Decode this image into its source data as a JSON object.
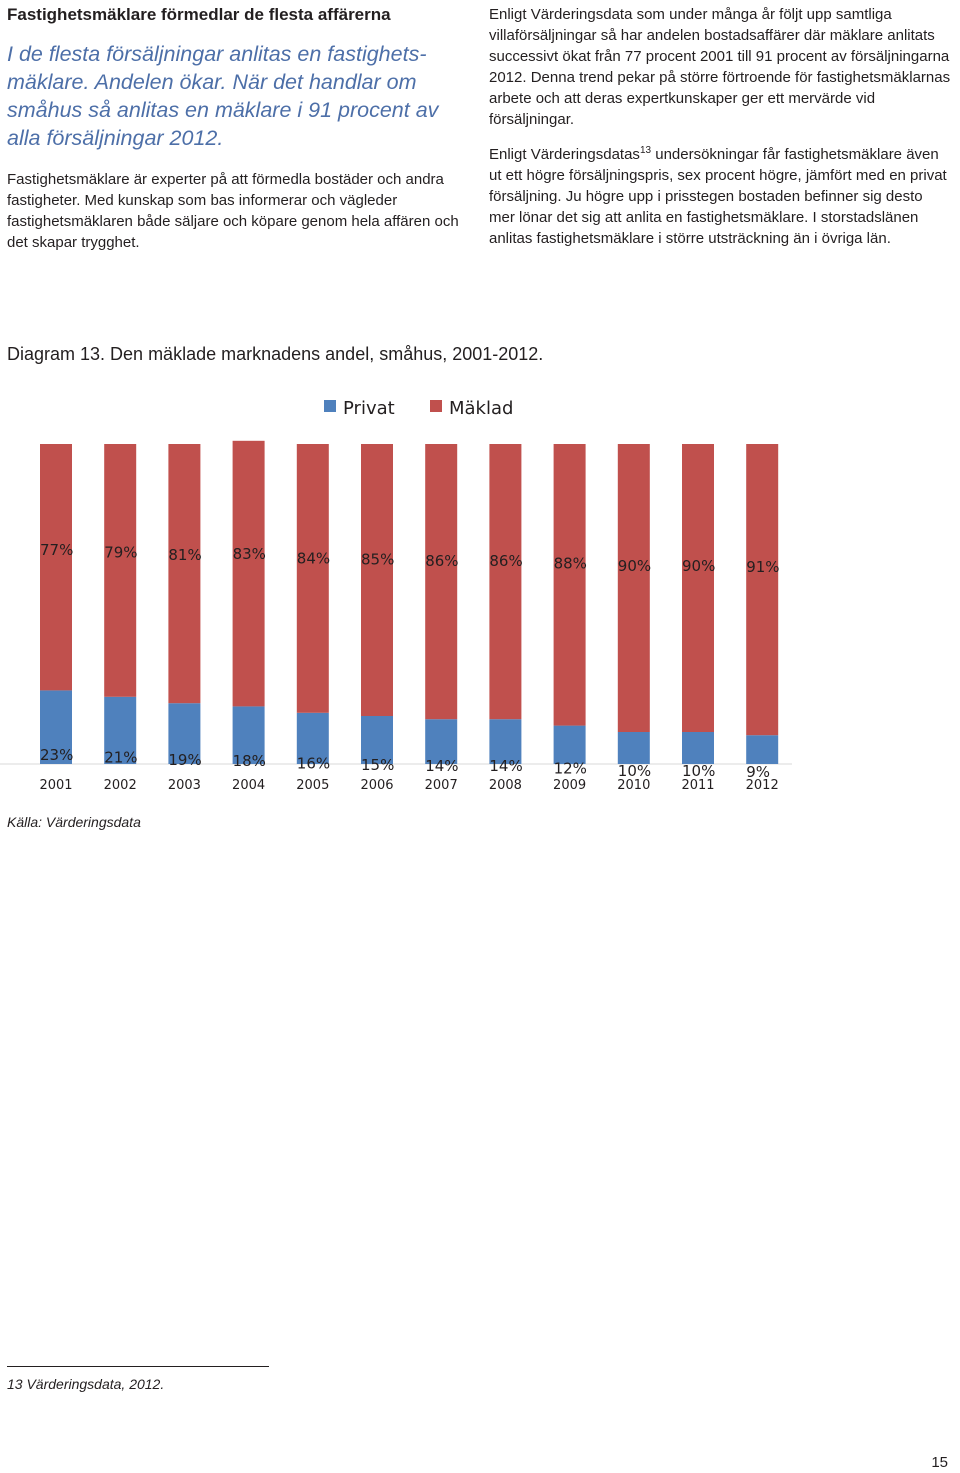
{
  "heading": "Fastighetsmäklare förmedlar de flesta affärerna",
  "lead": "I de flesta försäljningar anlitas en fastighets-mäklare. Andelen ökar. När det handlar om småhus så anlitas en mäklare i 91 procent av alla försäljningar 2012.",
  "left_paragraph": "Fastighetsmäklare är experter på att förmedla bostäder och andra fastigheter. Med kunskap som bas informerar och vägleder fastighetsmäklaren både säljare och köpare genom hela affären och det skapar trygghet.",
  "right_paragraph_1": "Enligt Värderingsdata som under många år följt upp samtliga villaförsäljningar så har andelen bostadsaffärer där mäklare anlitats successivt ökat från 77 procent 2001 till 91 procent av försäljningarna 2012. Denna trend pekar på större förtroende för fastighetsmäklarnas arbete och att deras expertkunskaper ger ett mervärde vid försäljningar.",
  "right_paragraph_2": {
    "before": "Enligt Värderingsdatas",
    "footnote_ref": "13",
    "after": " undersökningar får fastighetsmäklare även ut ett högre försäljningspris, sex procent högre, jämfört med en privat försäljning. Ju högre upp i prisstegen bostaden befinner sig desto mer lönar det sig att anlita en fastighetsmäklare. I storstadslänen anlitas fastighetsmäklare i större utsträckning än i övriga län."
  },
  "diagram_caption": "Diagram 13. Den mäklade marknadens andel, småhus, 2001-2012.",
  "source": "Källa: Värderingsdata",
  "footnote": "13 Värderingsdata, 2012.",
  "page_number": "15",
  "chart_data": {
    "type": "bar",
    "stacked": true,
    "percent_stacked": true,
    "categories": [
      "2001",
      "2002",
      "2003",
      "2004",
      "2005",
      "2006",
      "2007",
      "2008",
      "2009",
      "2010",
      "2011",
      "2012"
    ],
    "series": [
      {
        "name": "Privat",
        "color": "#4f81bd",
        "values": [
          23,
          21,
          19,
          18,
          16,
          15,
          14,
          14,
          12,
          10,
          10,
          9
        ]
      },
      {
        "name": "Mäklad",
        "color": "#c0504d",
        "values": [
          77,
          79,
          81,
          83,
          84,
          85,
          86,
          86,
          88,
          90,
          90,
          91
        ]
      }
    ],
    "data_labels": {
      "Privat": [
        "23%",
        "21%",
        "19%",
        "18%",
        "16%",
        "15%",
        "14%",
        "14%",
        "12%",
        "10%",
        "10%",
        "9%"
      ],
      "Mäklad": [
        "77%",
        "79%",
        "81%",
        "83%",
        "84%",
        "85%",
        "86%",
        "86%",
        "88%",
        "90%",
        "90%",
        "91%"
      ]
    },
    "ylim": [
      0,
      100
    ],
    "legend": "top",
    "grid": false
  }
}
